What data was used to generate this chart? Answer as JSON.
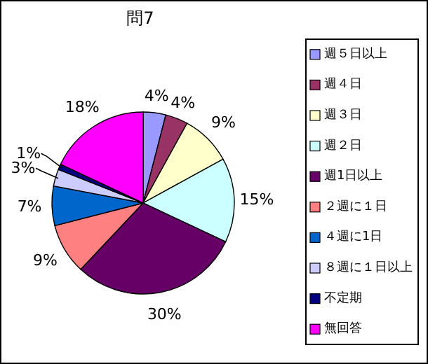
{
  "chart_data": {
    "type": "pie",
    "title": "問7",
    "categories": [
      "週５日以上",
      "週４日",
      "週３日",
      "週２日",
      "週1日以上",
      "２週に１日",
      "４週に1日",
      "８週に１日以上",
      "不定期",
      "無回答"
    ],
    "values": [
      4,
      4,
      9,
      15,
      30,
      9,
      7,
      3,
      1,
      18
    ],
    "value_labels": [
      "4%",
      "4%",
      "9%",
      "15%",
      "30%",
      "9%",
      "7%",
      "3%",
      "1%",
      "18%"
    ],
    "colors": [
      "#9999ff",
      "#993366",
      "#ffffcc",
      "#ccffff",
      "#660066",
      "#ff8080",
      "#0066cc",
      "#ccccff",
      "#000080",
      "#ff00ff"
    ],
    "legend": "right"
  }
}
